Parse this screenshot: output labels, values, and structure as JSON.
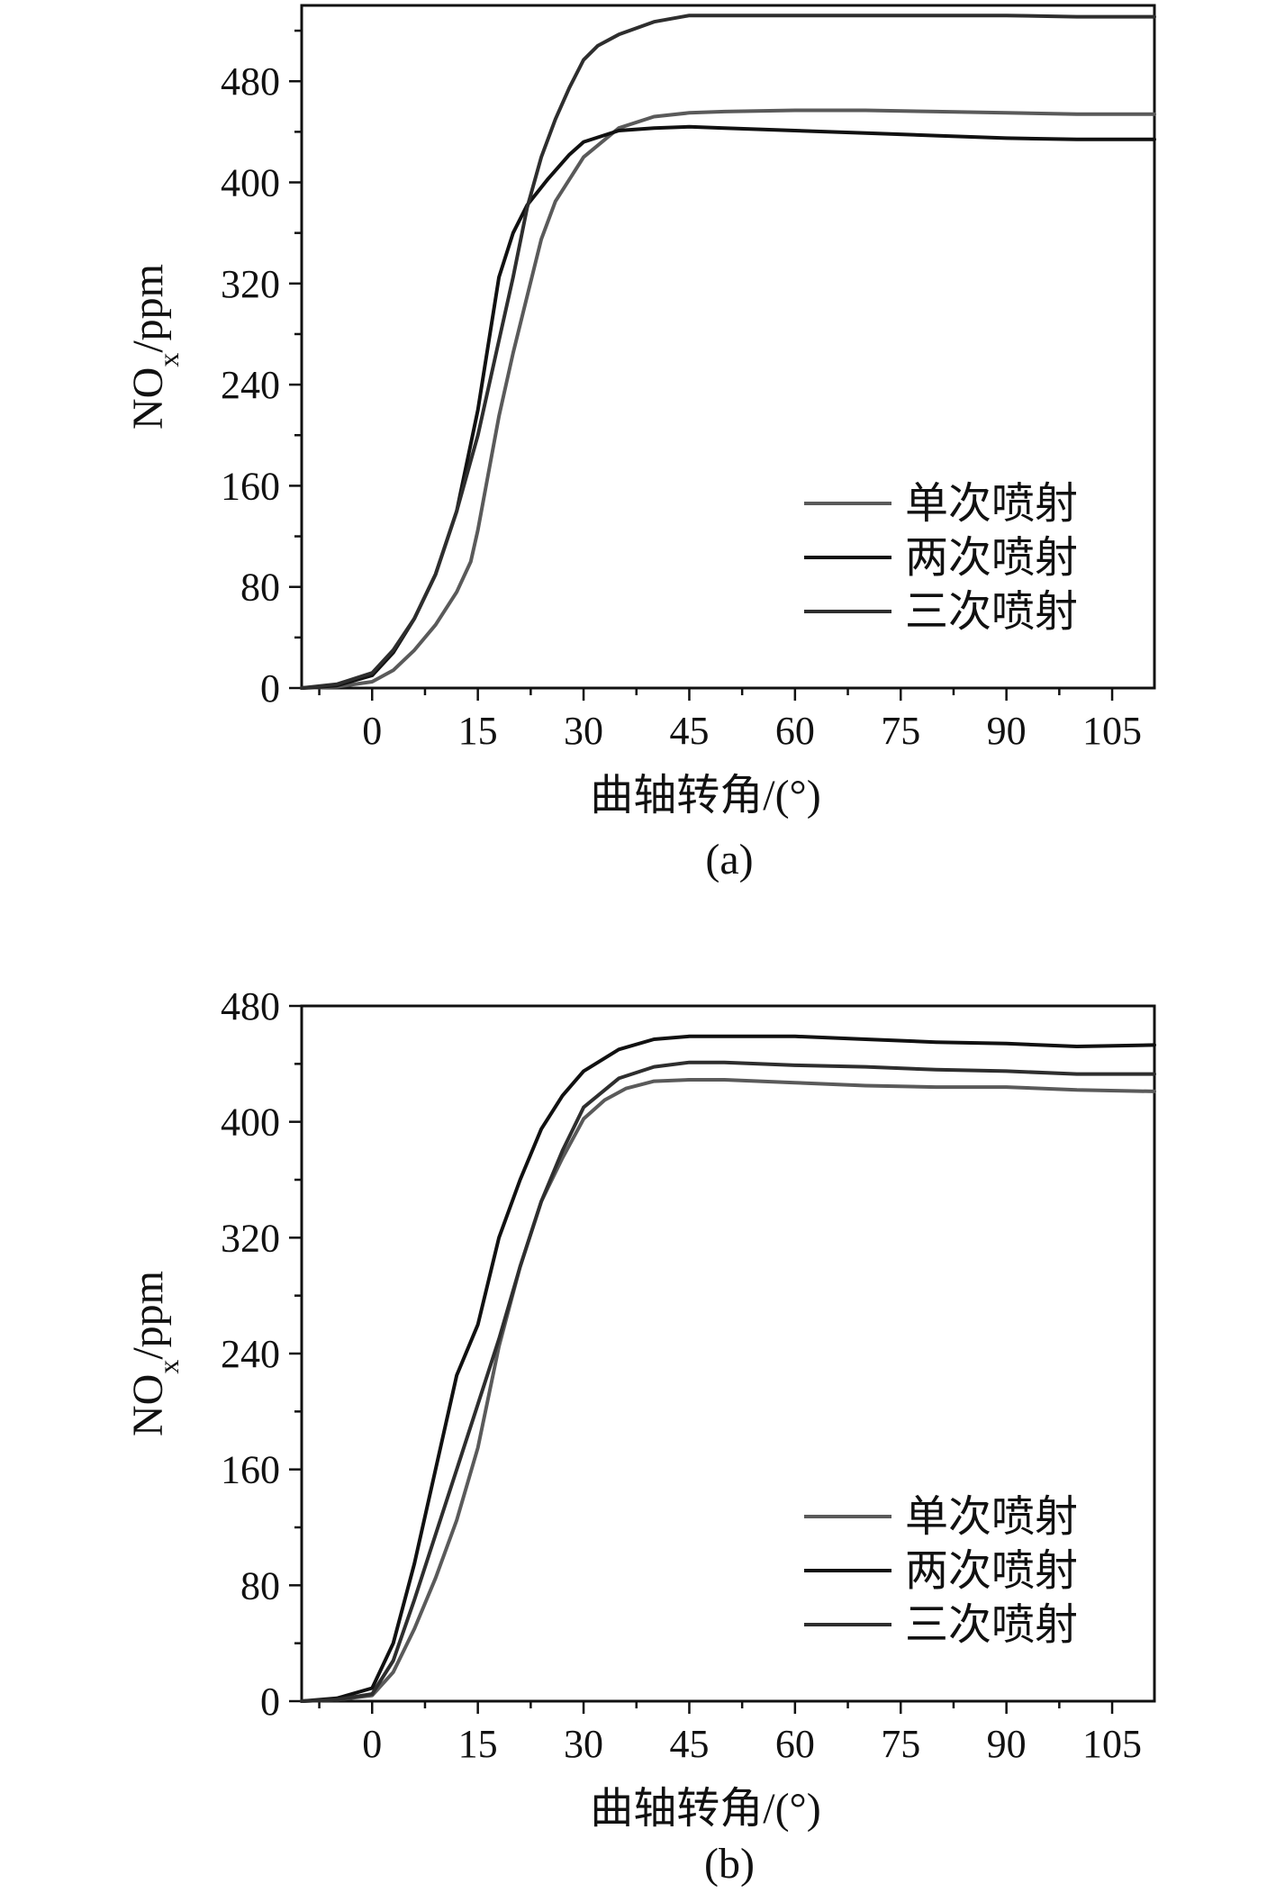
{
  "chart_data": [
    {
      "type": "line",
      "panel_label": "(a)",
      "xlabel": "曲轴转角/(°)",
      "ylabel_main": "NO",
      "ylabel_sub": "x",
      "ylabel_rest": "/ppm",
      "xlim": [
        -10,
        111
      ],
      "ylim": [
        0,
        540
      ],
      "xticks": [
        0,
        15,
        30,
        45,
        60,
        75,
        90,
        105
      ],
      "yticks": [
        0,
        80,
        160,
        240,
        320,
        400,
        480
      ],
      "grid": false,
      "legend_position": "bottom-right",
      "series": [
        {
          "name": "单次喷射",
          "color": "#5a5a5a",
          "x": [
            -10,
            -5,
            0,
            3,
            6,
            9,
            12,
            14,
            15,
            16,
            18,
            20,
            22,
            24,
            26,
            30,
            35,
            40,
            45,
            50,
            60,
            70,
            80,
            90,
            100,
            111
          ],
          "y": [
            0,
            1,
            5,
            14,
            30,
            50,
            76,
            100,
            125,
            155,
            215,
            265,
            310,
            355,
            385,
            420,
            443,
            452,
            455,
            456,
            457,
            457,
            456,
            455,
            454,
            454
          ]
        },
        {
          "name": "两次喷射",
          "color": "#111111",
          "x": [
            -10,
            -5,
            0,
            3,
            6,
            9,
            12,
            15,
            18,
            20,
            22,
            25,
            28,
            30,
            35,
            40,
            45,
            50,
            60,
            70,
            80,
            90,
            100,
            111
          ],
          "y": [
            0,
            2,
            10,
            28,
            55,
            90,
            140,
            220,
            325,
            360,
            382,
            403,
            422,
            432,
            441,
            443,
            444,
            443,
            441,
            439,
            437,
            435,
            434,
            434
          ]
        },
        {
          "name": "三次喷射",
          "color": "#2e2e2e",
          "x": [
            -10,
            -5,
            0,
            3,
            6,
            9,
            12,
            15,
            18,
            20,
            22,
            24,
            26,
            28,
            30,
            32,
            35,
            40,
            45,
            50,
            60,
            70,
            80,
            90,
            100,
            111
          ],
          "y": [
            0,
            3,
            12,
            30,
            55,
            90,
            140,
            200,
            275,
            325,
            380,
            420,
            450,
            475,
            497,
            508,
            517,
            527,
            532,
            532,
            532,
            532,
            532,
            532,
            531,
            531
          ]
        }
      ]
    },
    {
      "type": "line",
      "panel_label": "(b)",
      "xlabel": "曲轴转角/(°)",
      "ylabel_main": "NO",
      "ylabel_sub": "x",
      "ylabel_rest": "/ppm",
      "xlim": [
        -10,
        111
      ],
      "ylim": [
        0,
        480
      ],
      "xticks": [
        0,
        15,
        30,
        45,
        60,
        75,
        90,
        105
      ],
      "yticks": [
        0,
        80,
        160,
        240,
        320,
        400,
        480
      ],
      "grid": false,
      "legend_position": "bottom-right",
      "series": [
        {
          "name": "单次喷射",
          "color": "#5a5a5a",
          "x": [
            -10,
            -5,
            0,
            3,
            6,
            9,
            12,
            15,
            18,
            21,
            24,
            27,
            30,
            33,
            36,
            40,
            45,
            50,
            60,
            70,
            80,
            90,
            100,
            111
          ],
          "y": [
            0,
            1,
            4,
            20,
            50,
            85,
            125,
            175,
            245,
            300,
            345,
            375,
            402,
            415,
            423,
            428,
            429,
            429,
            427,
            425,
            424,
            424,
            422,
            421
          ]
        },
        {
          "name": "两次喷射",
          "color": "#111111",
          "x": [
            -10,
            -5,
            0,
            3,
            6,
            9,
            12,
            15,
            18,
            21,
            24,
            27,
            30,
            35,
            40,
            45,
            50,
            60,
            70,
            80,
            90,
            100,
            111
          ],
          "y": [
            0,
            2,
            9,
            40,
            95,
            160,
            225,
            260,
            320,
            360,
            395,
            418,
            435,
            450,
            457,
            459,
            459,
            459,
            457,
            455,
            454,
            452,
            453
          ]
        },
        {
          "name": "三次喷射",
          "color": "#2e2e2e",
          "x": [
            -10,
            -5,
            0,
            3,
            6,
            9,
            12,
            15,
            18,
            21,
            24,
            27,
            30,
            35,
            40,
            45,
            50,
            60,
            70,
            80,
            90,
            100,
            111
          ],
          "y": [
            0,
            1,
            5,
            28,
            70,
            115,
            160,
            205,
            250,
            300,
            345,
            380,
            410,
            430,
            438,
            441,
            441,
            439,
            438,
            436,
            435,
            433,
            433
          ]
        }
      ]
    }
  ]
}
